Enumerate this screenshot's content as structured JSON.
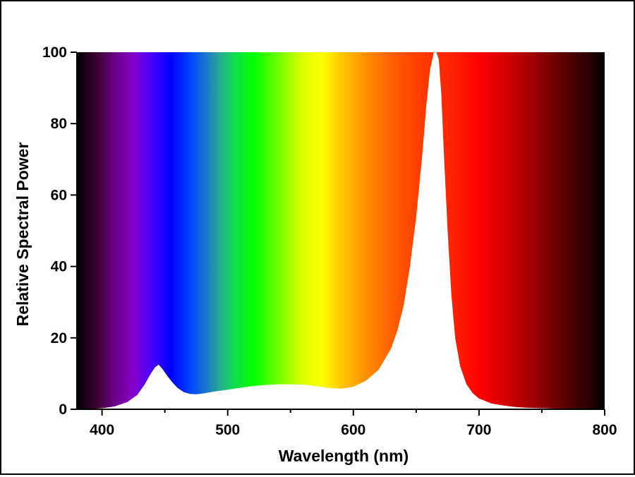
{
  "chart_data": {
    "type": "area",
    "title": "",
    "xlabel": "Wavelength (nm)",
    "ylabel": "Relative Spectral Power",
    "xlim": [
      380,
      800
    ],
    "ylim": [
      0,
      100
    ],
    "xticks": [
      "400",
      "500",
      "600",
      "700",
      "800"
    ],
    "yticks": [
      "0",
      "20",
      "40",
      "60",
      "80",
      "100"
    ],
    "grid": false,
    "legend": "none",
    "background": "visible spectrum color gradient (380–800 nm) above the curve",
    "fill_under_curve": "#ffffff",
    "series": [
      {
        "x": [
          380,
          390,
          400,
          410,
          420,
          428,
          434,
          438,
          442,
          445,
          448,
          452,
          456,
          460,
          465,
          470,
          475,
          480,
          490,
          500,
          510,
          520,
          530,
          540,
          550,
          560,
          570,
          580,
          590,
          600,
          610,
          620,
          630,
          635,
          640,
          645,
          650,
          655,
          658,
          661,
          664,
          666,
          668,
          670,
          672,
          675,
          678,
          681,
          685,
          690,
          695,
          700,
          710,
          720,
          730,
          740,
          760,
          780,
          800
        ],
        "y": [
          0,
          0.1,
          0.3,
          0.8,
          2,
          4,
          7,
          9.5,
          11.7,
          12.5,
          11.3,
          9.3,
          7.5,
          6,
          4.8,
          4.3,
          4.2,
          4.4,
          5,
          5.5,
          6,
          6.5,
          6.8,
          7,
          7,
          6.9,
          6.5,
          6,
          5.8,
          6.3,
          8,
          11,
          17,
          22,
          29,
          40,
          54,
          72,
          85,
          95,
          100,
          100,
          98,
          88,
          72,
          50,
          32,
          20,
          12,
          7,
          4.5,
          3,
          1.6,
          1,
          0.6,
          0.4,
          0.2,
          0.1,
          0
        ]
      }
    ]
  }
}
